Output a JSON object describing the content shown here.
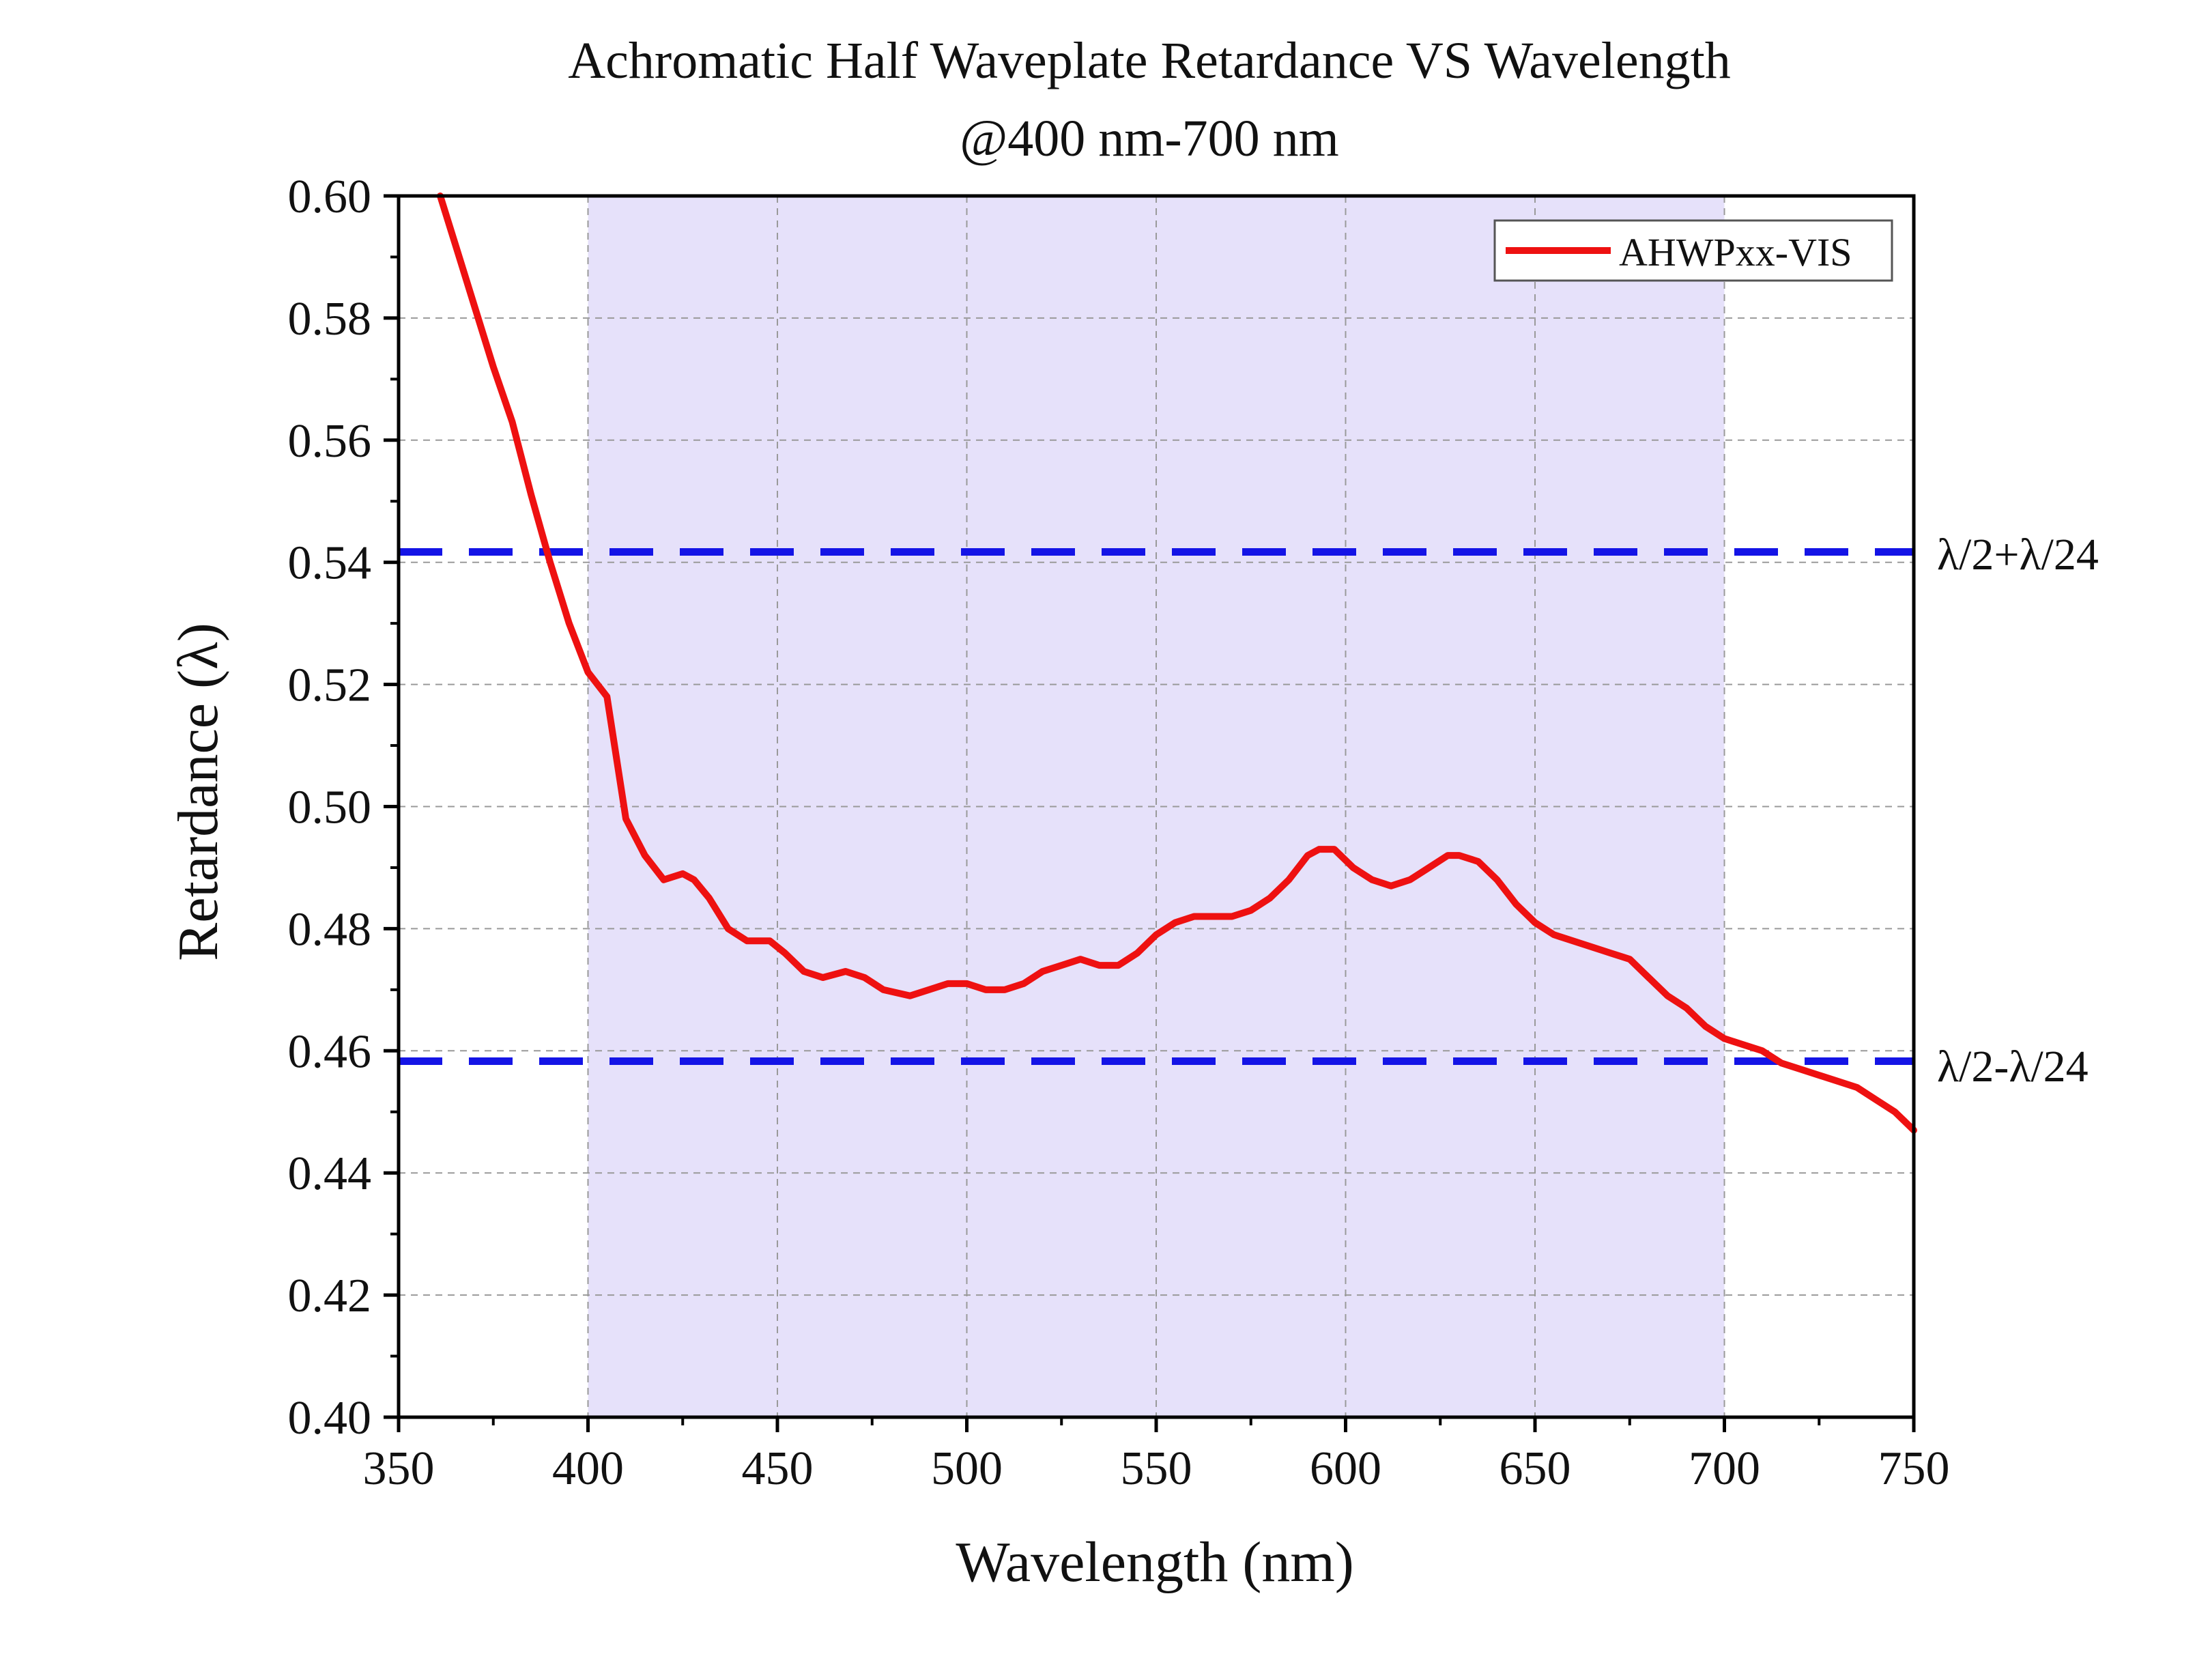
{
  "chart_data": {
    "type": "line",
    "title": "Achromatic Half Waveplate Retardance VS Wavelength",
    "subtitle": "@400 nm-700 nm",
    "xlabel": "Wavelength (nm)",
    "ylabel": "Retardance (λ)",
    "xlim": [
      350,
      750
    ],
    "ylim": [
      0.4,
      0.6
    ],
    "x_ticks": [
      "350",
      "400",
      "450",
      "500",
      "550",
      "600",
      "650",
      "700",
      "750"
    ],
    "y_ticks": [
      "0.40",
      "0.42",
      "0.44",
      "0.46",
      "0.48",
      "0.50",
      "0.52",
      "0.54",
      "0.56",
      "0.58",
      "0.60"
    ],
    "grid": true,
    "legend": "top-right",
    "shaded_band": {
      "x_range": [
        400,
        700
      ],
      "color": "#e6e1fa"
    },
    "reference_lines": [
      {
        "label": "λ/2+λ/24",
        "y": 0.5417,
        "color": "#1414e6"
      },
      {
        "label": "λ/2-λ/24",
        "y": 0.4583,
        "color": "#1414e6"
      }
    ],
    "series": [
      {
        "name": "AHWPxx-VIS",
        "color": "#ee1111",
        "x": [
          361,
          365,
          370,
          375,
          380,
          385,
          390,
          395,
          400,
          405,
          410,
          415,
          420,
          425,
          428,
          432,
          437,
          442,
          448,
          452,
          457,
          462,
          468,
          473,
          478,
          485,
          490,
          495,
          500,
          505,
          510,
          515,
          520,
          525,
          530,
          535,
          540,
          545,
          550,
          555,
          560,
          565,
          570,
          575,
          580,
          585,
          590,
          593,
          597,
          602,
          607,
          612,
          617,
          622,
          627,
          630,
          635,
          640,
          645,
          650,
          655,
          660,
          665,
          670,
          675,
          680,
          685,
          690,
          695,
          700,
          705,
          710,
          715,
          720,
          725,
          730,
          735,
          740,
          745,
          750
        ],
        "y": [
          0.6,
          0.592,
          0.582,
          0.572,
          0.563,
          0.551,
          0.54,
          0.53,
          0.522,
          0.518,
          0.498,
          0.492,
          0.488,
          0.489,
          0.488,
          0.485,
          0.48,
          0.478,
          0.478,
          0.476,
          0.473,
          0.472,
          0.473,
          0.472,
          0.47,
          0.469,
          0.47,
          0.471,
          0.471,
          0.47,
          0.47,
          0.471,
          0.473,
          0.474,
          0.475,
          0.474,
          0.474,
          0.476,
          0.479,
          0.481,
          0.482,
          0.482,
          0.482,
          0.483,
          0.485,
          0.488,
          0.492,
          0.493,
          0.493,
          0.49,
          0.488,
          0.487,
          0.488,
          0.49,
          0.492,
          0.492,
          0.491,
          0.488,
          0.484,
          0.481,
          0.479,
          0.478,
          0.477,
          0.476,
          0.475,
          0.472,
          0.469,
          0.467,
          0.464,
          0.462,
          0.461,
          0.46,
          0.458,
          0.457,
          0.456,
          0.455,
          0.454,
          0.452,
          0.45,
          0.447
        ]
      }
    ]
  }
}
